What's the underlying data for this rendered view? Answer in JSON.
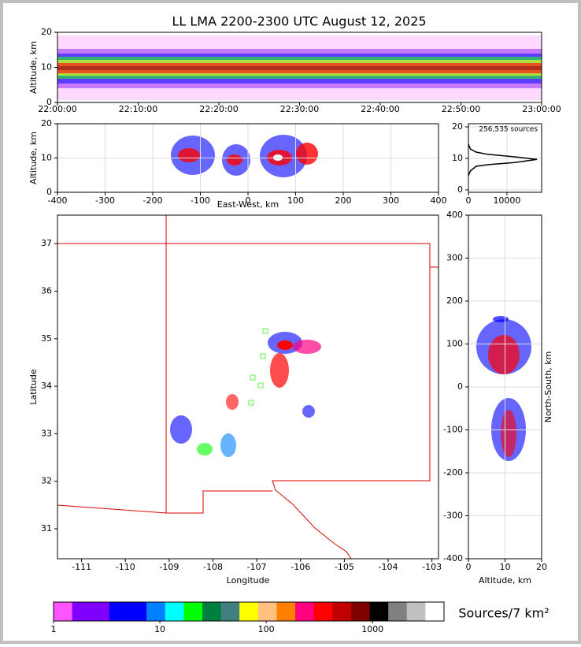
{
  "chart_data": [
    {
      "type": "density",
      "title": "LL LMA 2200-2300 UTC August 12, 2025",
      "y_label": "Altitude, km",
      "categories": [
        "22:00:00",
        "22:10:00",
        "22:20:00",
        "22:30:00",
        "22:40:00",
        "22:50:00",
        "23:00:00"
      ],
      "ylim": [
        0,
        20
      ],
      "yticks": [
        0,
        10,
        20
      ],
      "grid": false
    },
    {
      "type": "density",
      "x_label": "East-West, km",
      "y_label": "Altitude, km",
      "xlim": [
        -400,
        400
      ],
      "xticks": [
        -400,
        -300,
        -200,
        -100,
        0,
        100,
        200,
        300,
        400
      ],
      "ylim": [
        0,
        20
      ],
      "yticks": [
        0,
        10,
        20
      ],
      "grid": true
    },
    {
      "type": "line",
      "annotation": "256,535 sources",
      "x": [
        0,
        500,
        2000,
        5000,
        12000,
        17800,
        12000,
        5000,
        2000,
        500,
        0
      ],
      "series": [
        {
          "color": "#000000",
          "values": [
            4.5,
            6,
            7.5,
            8,
            8.7,
            9.7,
            10.5,
            11.3,
            12,
            13,
            14.5
          ]
        }
      ],
      "xlim": [
        0,
        19000
      ],
      "xticks": [
        0,
        10000
      ],
      "ylim": [
        -0.75,
        21
      ],
      "yticks": [
        0,
        10,
        20
      ],
      "grid": true
    },
    {
      "type": "density",
      "x_label": "Longitude",
      "y_label": "Latitude",
      "xlim": [
        -111.55,
        -102.85
      ],
      "xticks": [
        -111,
        -110,
        -109,
        -108,
        -107,
        -106,
        -105,
        -104,
        -103
      ],
      "ylim": [
        30.37,
        37.6
      ],
      "yticks": [
        31,
        32,
        33,
        34,
        35,
        36,
        37
      ],
      "grid": false
    },
    {
      "type": "density",
      "x_label": "Altitude, km",
      "y_label": "North-South, km",
      "xlim": [
        0,
        20
      ],
      "xticks": [
        0,
        10,
        20
      ],
      "ylim": [
        -400,
        400
      ],
      "yticks": [
        -400,
        -300,
        -200,
        -100,
        0,
        100,
        200,
        300,
        400
      ],
      "grid": true
    },
    {
      "type": "colorbar",
      "label": "Sources/7 km²",
      "log": true,
      "lim": [
        1,
        4700
      ],
      "ticks": [
        1,
        10,
        100,
        1000
      ],
      "colors": [
        "#ff55ff",
        "#8000ff",
        "#8000ff",
        "#0000ff",
        "#0000ff",
        "#0080ff",
        "#00ffff",
        "#00ff00",
        "#008040",
        "#408080",
        "#ffff00",
        "#ffc080",
        "#ff8000",
        "#ff0080",
        "#ff0000",
        "#c00000",
        "#800000",
        "#000000",
        "#808080",
        "#c0c0c0",
        "#ffffff"
      ]
    }
  ]
}
